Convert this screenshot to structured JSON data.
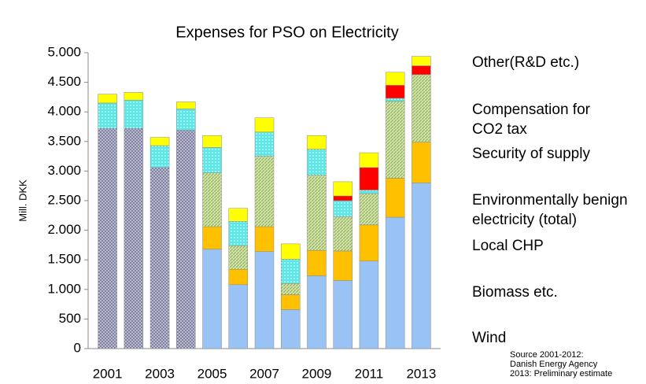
{
  "chart_data": {
    "type": "stacked_bar",
    "title": "Expenses for PSO on Electricity",
    "y_label": "Mill. DKK",
    "categories": [
      "2001",
      null,
      "2003",
      null,
      "2005",
      null,
      "2007",
      null,
      "2009",
      null,
      "2011",
      null,
      "2013"
    ],
    "series": [
      {
        "name": "Wind",
        "color": "#99c3f5",
        "values": [
          null,
          null,
          null,
          null,
          1680,
          1080,
          1640,
          660,
          1230,
          1150,
          1480,
          2220,
          2800
        ]
      },
      {
        "name": "Biomass etc.",
        "color": "#ffc000",
        "values": [
          null,
          null,
          null,
          null,
          380,
          260,
          420,
          250,
          430,
          500,
          610,
          660,
          690
        ]
      },
      {
        "name": "Local CHP",
        "color": "#9bbb59",
        "pattern": "hatch",
        "values": [
          null,
          null,
          null,
          null,
          910,
          400,
          1190,
          190,
          1270,
          580,
          530,
          1300,
          1140
        ]
      },
      {
        "name": "Environmentally benign\nelectricity (total)",
        "color": "#7f7f9f",
        "pattern": "cross",
        "values": [
          3720,
          3720,
          3060,
          3690,
          null,
          null,
          null,
          null,
          null,
          null,
          null,
          null,
          null
        ]
      },
      {
        "name": "Security of supply",
        "color": "#5ce6e6",
        "pattern": "dots",
        "values": [
          430,
          480,
          370,
          360,
          430,
          410,
          410,
          410,
          440,
          270,
          60,
          50,
          0
        ]
      },
      {
        "name": "Compensation for\nCO2 tax",
        "color": "#ff0000",
        "values": [
          null,
          null,
          null,
          null,
          null,
          null,
          null,
          null,
          null,
          80,
          380,
          220,
          150
        ]
      },
      {
        "name": "Other(R&D etc.)",
        "color": "#ffff00",
        "values": [
          150,
          130,
          140,
          120,
          200,
          220,
          240,
          260,
          230,
          240,
          250,
          220,
          160
        ]
      }
    ],
    "ylim": [
      0,
      5000
    ],
    "yticks": [
      0,
      500,
      {
        "value": 1000,
        "label": "1.000"
      },
      {
        "value": 1500,
        "label": "1.500"
      },
      {
        "value": 2000,
        "label": "2.000"
      },
      {
        "value": 2500,
        "label": "2.500"
      },
      {
        "value": 3000,
        "label": "3.000"
      },
      {
        "value": 3500,
        "label": "3.500"
      },
      {
        "value": 4000,
        "label": "4.000"
      },
      {
        "value": 4500,
        "label": "4.500"
      },
      {
        "value": 5000,
        "label": "5.000"
      }
    ],
    "grid": false,
    "legend": "right",
    "source": [
      "Source 2001-2012:",
      "Danish Energy Agency",
      "2013: Preliminary estimate"
    ]
  }
}
